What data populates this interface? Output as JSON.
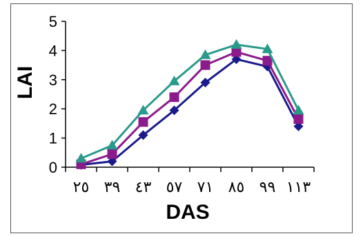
{
  "chart_data": {
    "type": "line",
    "xlabel": "DAS",
    "ylabel": "LAI",
    "categories": [
      "٢٥",
      "٣٩",
      "٤٣",
      "٥٧",
      "٧١",
      "٨٥",
      "٩٩",
      "١١٣"
    ],
    "ylim": [
      0,
      5
    ],
    "yticks": [
      0,
      1,
      2,
      3,
      4,
      5
    ],
    "grid": false,
    "legend": "none",
    "series": [
      {
        "marker": "diamond",
        "color": "#1a1a8c",
        "values": [
          0.08,
          0.2,
          1.1,
          1.95,
          2.9,
          3.7,
          3.45,
          1.4
        ]
      },
      {
        "marker": "square",
        "color": "#8b1a8b",
        "values": [
          0.1,
          0.45,
          1.55,
          2.4,
          3.5,
          3.95,
          3.65,
          1.65
        ]
      },
      {
        "marker": "triangle",
        "color": "#2a9a8a",
        "values": [
          0.3,
          0.75,
          1.95,
          2.95,
          3.85,
          4.2,
          4.05,
          1.95
        ]
      }
    ]
  }
}
